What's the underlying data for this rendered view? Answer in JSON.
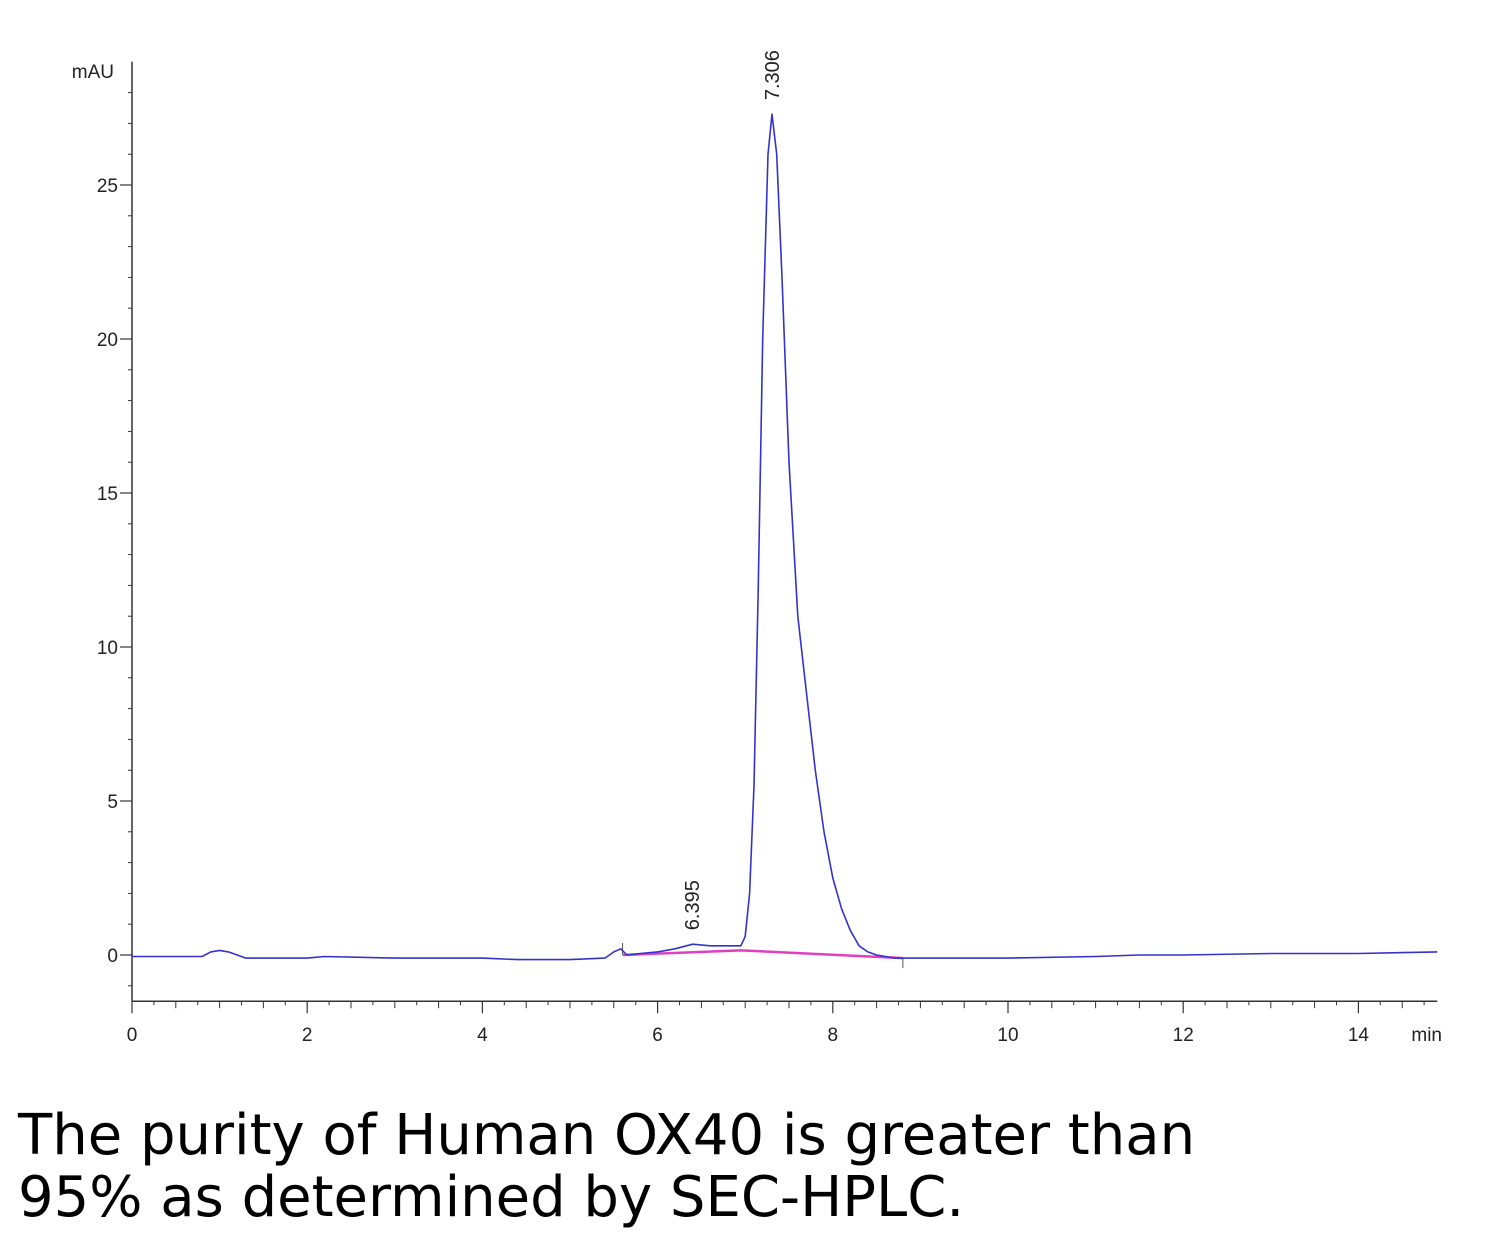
{
  "chart_data": {
    "type": "line",
    "xlabel": "min",
    "ylabel": "mAU",
    "xlim": [
      0,
      14.9
    ],
    "ylim": [
      -1.5,
      29
    ],
    "x_ticks": [
      0,
      2,
      4,
      6,
      8,
      10,
      12,
      14
    ],
    "y_ticks": [
      0,
      5,
      10,
      15,
      20,
      25
    ],
    "grid": false,
    "colors": {
      "trace": "#3333cc",
      "baseline": "#e040c0",
      "axis": "#333333"
    },
    "series": [
      {
        "x": [
          0,
          0.8,
          0.9,
          1.0,
          1.1,
          1.3,
          2.0,
          2.2,
          3.0,
          4.0,
          4.4,
          5.0,
          5.4,
          5.5,
          5.58,
          5.65,
          5.8,
          6.0,
          6.2,
          6.4,
          6.6,
          6.8,
          6.95,
          7.0,
          7.05,
          7.1,
          7.15,
          7.2,
          7.26,
          7.306,
          7.36,
          7.42,
          7.5,
          7.6,
          7.7,
          7.8,
          7.9,
          8.0,
          8.1,
          8.2,
          8.3,
          8.4,
          8.5,
          8.7,
          9.0,
          10.0,
          11.0,
          11.5,
          12.0,
          13.0,
          14.0,
          14.9
        ],
        "y": [
          -0.05,
          -0.05,
          0.1,
          0.15,
          0.1,
          -0.1,
          -0.1,
          -0.05,
          -0.1,
          -0.1,
          -0.15,
          -0.15,
          -0.1,
          0.1,
          0.2,
          0.0,
          0.05,
          0.1,
          0.2,
          0.35,
          0.3,
          0.3,
          0.3,
          0.6,
          2.0,
          5.5,
          12.0,
          20.0,
          26.0,
          27.3,
          26.0,
          22.0,
          16.0,
          11.0,
          8.5,
          6.0,
          4.0,
          2.5,
          1.5,
          0.8,
          0.3,
          0.1,
          0.0,
          -0.1,
          -0.1,
          -0.1,
          -0.05,
          0.0,
          0.0,
          0.05,
          0.05,
          0.1
        ]
      }
    ],
    "integration_baseline": {
      "x": [
        5.6,
        6.95,
        8.8
      ],
      "y": [
        0.0,
        0.15,
        -0.1
      ]
    },
    "peak_labels": [
      {
        "x": 6.395,
        "y": 0.35,
        "text": "6.395"
      },
      {
        "x": 7.306,
        "y": 27.3,
        "text": "7.306"
      }
    ]
  },
  "caption": {
    "line1": "The purity of Human OX40 is greater than",
    "line2": "95% as determined by SEC-HPLC."
  }
}
